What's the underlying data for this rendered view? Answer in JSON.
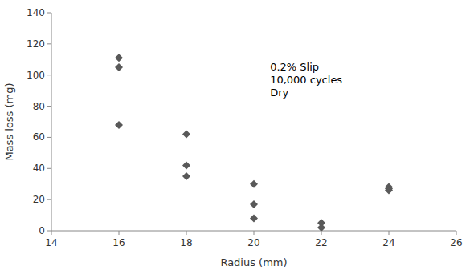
{
  "chart_data": {
    "type": "scatter",
    "x": [
      16,
      16,
      16,
      18,
      18,
      18,
      20,
      20,
      20,
      22,
      22,
      24,
      24,
      24
    ],
    "values": [
      111,
      105,
      68,
      62,
      42,
      35,
      30,
      17,
      8,
      5,
      2,
      28,
      27,
      26
    ],
    "color": "#595959",
    "marker": "diamond",
    "xlabel": "Radius (mm)",
    "ylabel": "Mass loss (mg)",
    "xlim": [
      14,
      26
    ],
    "ylim": [
      0,
      140
    ],
    "xticks": [
      14,
      16,
      18,
      20,
      22,
      24,
      26
    ],
    "yticks": [
      0,
      20,
      40,
      60,
      80,
      100,
      120,
      140
    ],
    "annotation": "0.2% Slip\n10,000 cycles\nDry",
    "grid": false
  }
}
